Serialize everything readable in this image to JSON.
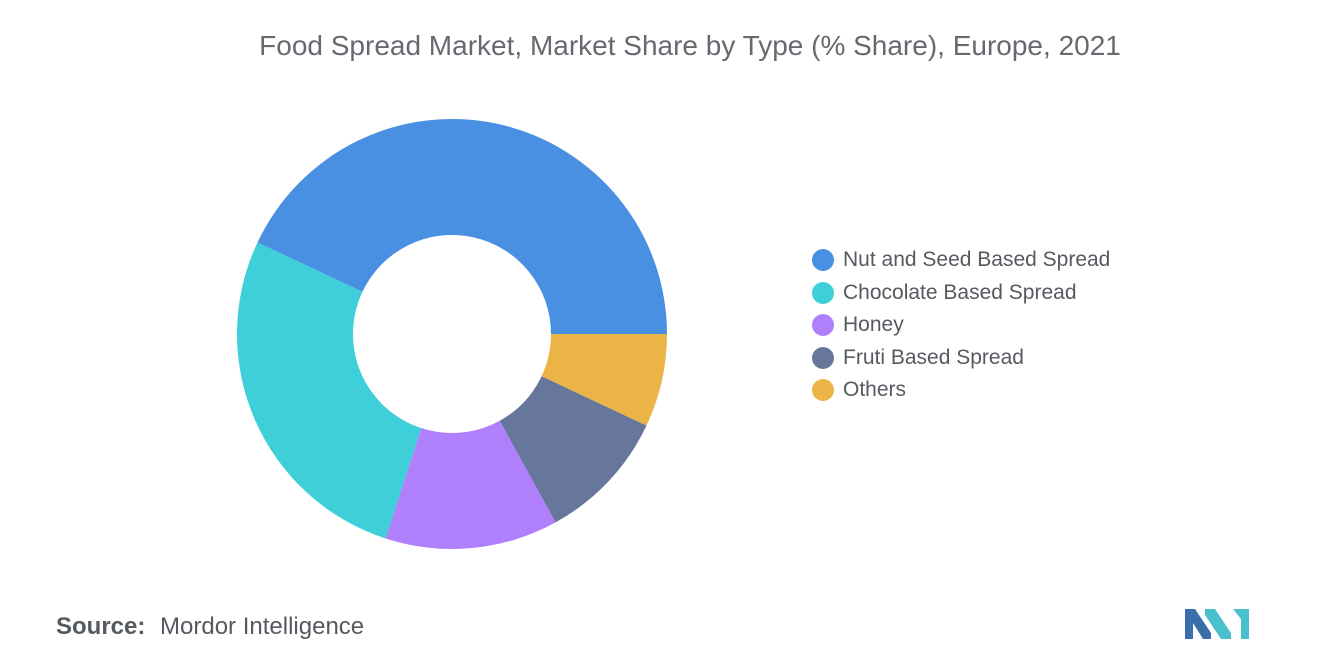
{
  "chart_data": {
    "type": "pie",
    "title": "Food Spread Market, Market Share by Type (% Share), Europe, 2021",
    "donut": true,
    "legend_position": "right",
    "categories": [
      "Nut and Seed Based Spread",
      "Chocolate Based Spread",
      "Honey",
      "Fruti Based Spread",
      "Others"
    ],
    "values": [
      43,
      27,
      13,
      10,
      7
    ],
    "colors": [
      "#4a90e2",
      "#3ecfd8",
      "#b07ffb",
      "#66779b",
      "#ebb447"
    ]
  },
  "source": {
    "label": "Source:",
    "text": "Mordor Intelligence"
  },
  "logo": {
    "icon": "mordor-intelligence-logo-icon",
    "colors": [
      "#3a6ea8",
      "#4ac0cc"
    ]
  }
}
